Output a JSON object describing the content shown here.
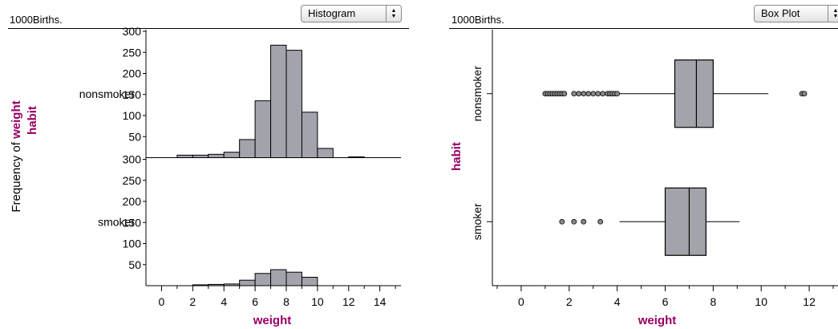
{
  "colors": {
    "bar_fill": "#a3a3ab",
    "accent": "#990066",
    "outlier": "#888888"
  },
  "left": {
    "dataset": "1000Births.",
    "plot_select": "Histogram",
    "chart_data": {
      "type": "bar",
      "xlabel": "weight",
      "ylabel_prefix": "Frequency of ",
      "ylabel_var": "weight",
      "group_label": "habit",
      "xlim": [
        -1,
        15.2
      ],
      "xticks": [
        0,
        2,
        4,
        6,
        8,
        10,
        12,
        14
      ],
      "ylim": [
        0,
        300
      ],
      "yticks": [
        50,
        100,
        150,
        200,
        250,
        300
      ],
      "bin_width": 1,
      "bin_edges": [
        1,
        2,
        3,
        4,
        5,
        6,
        7,
        8,
        9,
        10,
        11,
        12
      ],
      "series": [
        {
          "name": "nonsmoker",
          "counts": [
            6,
            6,
            8,
            13,
            43,
            135,
            267,
            255,
            108,
            22,
            0,
            2
          ]
        },
        {
          "name": "smoker",
          "counts": [
            0,
            2,
            3,
            4,
            13,
            29,
            38,
            32,
            20,
            0,
            0,
            0
          ]
        }
      ]
    }
  },
  "right": {
    "dataset": "1000Births.",
    "plot_select": "Box Plot",
    "chart_data": {
      "type": "box",
      "xlabel": "weight",
      "ylabel": "habit",
      "xlim": [
        -1.2,
        13.2
      ],
      "xticks": [
        0,
        2,
        4,
        6,
        8,
        10,
        12
      ],
      "groups": [
        {
          "name": "nonsmoker",
          "whisker_low": 4.1,
          "q1": 6.4,
          "median": 7.3,
          "q3": 8.0,
          "whisker_high": 10.3,
          "outliers": [
            1.0,
            1.1,
            1.2,
            1.3,
            1.4,
            1.5,
            1.6,
            1.7,
            1.8,
            2.2,
            2.4,
            2.6,
            2.8,
            3.0,
            3.2,
            3.4,
            3.6,
            3.7,
            3.8,
            3.9,
            4.0,
            11.7,
            11.8
          ]
        },
        {
          "name": "smoker",
          "whisker_low": 4.1,
          "q1": 6.0,
          "median": 7.0,
          "q3": 7.7,
          "whisker_high": 9.1,
          "outliers": [
            1.7,
            2.2,
            2.6,
            3.3
          ]
        }
      ]
    }
  }
}
